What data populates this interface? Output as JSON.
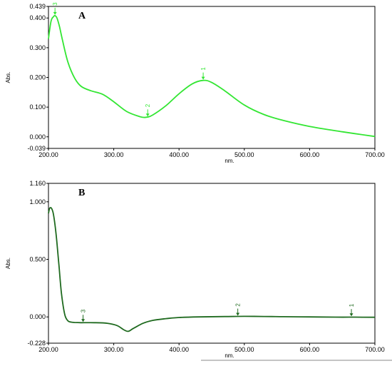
{
  "chart_data": [
    {
      "type": "line",
      "panel_label": "A",
      "xlabel": "nm.",
      "ylabel": "Abs.",
      "xlim": [
        200,
        700
      ],
      "ylim": [
        -0.039,
        0.439
      ],
      "x_ticks": [
        "200.00",
        "300.00",
        "400.00",
        "500.00",
        "600.00",
        "700.00"
      ],
      "y_ticks": [
        "0.439",
        "0.400",
        "0.300",
        "0.200",
        "0.100",
        "0.000",
        "-0.039"
      ],
      "line_color": "#33e633",
      "series": [
        {
          "x": [
            200,
            204,
            208,
            210,
            213,
            217,
            222,
            230,
            240,
            250,
            265,
            283,
            300,
            320,
            340,
            350,
            360,
            380,
            400,
            420,
            437,
            450,
            470,
            500,
            530,
            560,
            600,
            650,
            700
          ],
          "values": [
            0.33,
            0.39,
            0.405,
            0.408,
            0.4,
            0.37,
            0.32,
            0.25,
            0.198,
            0.17,
            0.155,
            0.143,
            0.118,
            0.085,
            0.068,
            0.066,
            0.074,
            0.105,
            0.145,
            0.178,
            0.19,
            0.183,
            0.155,
            0.107,
            0.075,
            0.055,
            0.035,
            0.017,
            0.001
          ]
        }
      ],
      "peaks": [
        {
          "label": "1",
          "x": 437,
          "y": 0.19
        },
        {
          "label": "2",
          "x": 352,
          "y": 0.066
        },
        {
          "label": "3",
          "x": 210,
          "y": 0.408
        }
      ]
    },
    {
      "type": "line",
      "panel_label": "B",
      "xlabel": "nm.",
      "ylabel": "Abs.",
      "xlim": [
        200,
        700
      ],
      "ylim": [
        -0.228,
        1.16
      ],
      "x_ticks": [
        "200.00",
        "300.00",
        "400.00",
        "500.00",
        "600.00",
        "700.00"
      ],
      "y_ticks": [
        "1.160",
        "1.000",
        "0.500",
        "0.000",
        "-0.228"
      ],
      "line_color": "#1f6a1f",
      "series": [
        {
          "x": [
            200,
            202,
            205,
            208,
            212,
            216,
            220,
            225,
            230,
            235,
            240,
            250,
            270,
            290,
            305,
            315,
            322,
            330,
            345,
            360,
            380,
            400,
            430,
            470,
            500,
            530,
            560,
            600,
            640,
            670,
            700
          ],
          "values": [
            0.9,
            0.945,
            0.94,
            0.88,
            0.7,
            0.45,
            0.2,
            0.02,
            -0.035,
            -0.045,
            -0.048,
            -0.05,
            -0.05,
            -0.055,
            -0.075,
            -0.11,
            -0.125,
            -0.1,
            -0.055,
            -0.03,
            -0.015,
            -0.005,
            0.0,
            0.003,
            0.005,
            0.004,
            0.002,
            0.0,
            -0.002,
            -0.002,
            -0.003
          ]
        }
      ],
      "peaks": [
        {
          "label": "1",
          "x": 664,
          "y": 0.0
        },
        {
          "label": "2",
          "x": 490,
          "y": 0.004
        },
        {
          "label": "3",
          "x": 253,
          "y": -0.05
        }
      ]
    }
  ]
}
